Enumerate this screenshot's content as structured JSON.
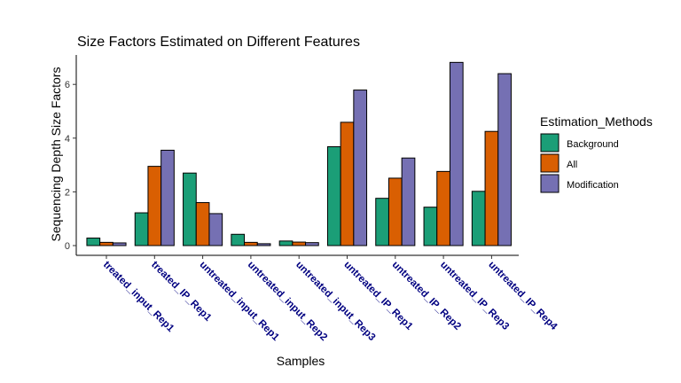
{
  "chart_data": {
    "type": "bar",
    "title": "Size Factors Estimated on Different Features",
    "xlabel": "Samples",
    "ylabel": "Sequencing Depth Size Factors",
    "ylim": [
      0,
      7.1
    ],
    "yticks": [
      0,
      2,
      4,
      6
    ],
    "grid": false,
    "legend_position": "right",
    "legend_title": "Estimation_Methods",
    "categories": [
      "treated_input_Rep1",
      "treated_IP_Rep1",
      "untreated_input_Rep1",
      "untreated_input_Rep2",
      "untreated_input_Rep3",
      "untreated_IP_Rep1",
      "untreated_IP_Rep2",
      "untreated_IP_Rep3",
      "untreated_IP_Rep4"
    ],
    "series": [
      {
        "name": "Background",
        "color": "#1b9e77",
        "values": [
          0.28,
          1.22,
          2.7,
          0.42,
          0.17,
          3.68,
          1.76,
          1.43,
          2.02
        ]
      },
      {
        "name": "All",
        "color": "#d95f02",
        "values": [
          0.12,
          2.95,
          1.6,
          0.12,
          0.13,
          4.59,
          2.51,
          2.76,
          4.25
        ]
      },
      {
        "name": "Modification",
        "color": "#7570b3",
        "values": [
          0.1,
          3.55,
          1.19,
          0.07,
          0.11,
          5.79,
          3.26,
          6.82,
          6.4
        ]
      }
    ]
  }
}
